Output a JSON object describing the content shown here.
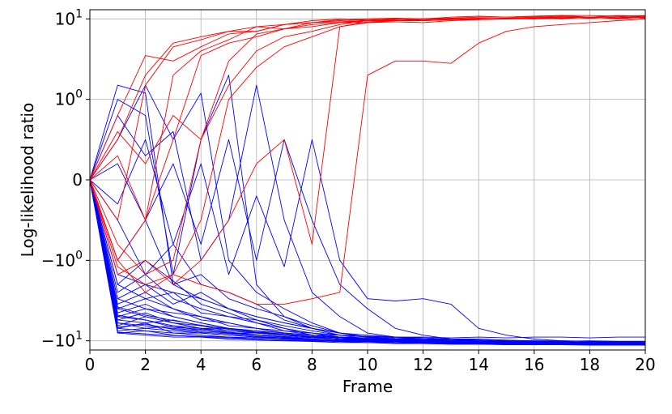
{
  "chart_data": {
    "type": "line",
    "title": "",
    "xlabel": "Frame",
    "ylabel": "Log-likelihood ratio",
    "xlim": [
      0,
      20
    ],
    "ylim": [
      -13,
      13
    ],
    "yscale": "symlog",
    "ylinthresh": 1,
    "grid": true,
    "legend": "none",
    "x": [
      0,
      1,
      2,
      3,
      4,
      5,
      6,
      7,
      8,
      9,
      10,
      11,
      12,
      13,
      14,
      15,
      16,
      17,
      18,
      19,
      20
    ],
    "x_ticks": [
      0,
      2,
      4,
      6,
      8,
      10,
      12,
      14,
      16,
      18,
      20
    ],
    "x_tick_labels": [
      "0",
      "2",
      "4",
      "6",
      "8",
      "10",
      "12",
      "14",
      "16",
      "18",
      "20"
    ],
    "y_ticks": [
      -10,
      -1,
      0,
      1,
      10
    ],
    "y_tick_labels": [
      {
        "base": "−10",
        "exp": "1"
      },
      {
        "base": "−10",
        "exp": "0"
      },
      {
        "base": "0",
        "exp": ""
      },
      {
        "base": "10",
        "exp": "0"
      },
      {
        "base": "10",
        "exp": "1"
      }
    ],
    "colors": {
      "class_a": "#ff0000",
      "class_b": "#0000ff"
    },
    "series_red": [
      [
        0,
        0.8,
        3.5,
        3.0,
        4.5,
        6.5,
        7.0,
        8.5,
        9.5,
        10.0,
        9.5,
        9.8,
        10.0,
        10.2,
        10.5,
        10.5,
        10.8,
        11.0,
        11.0,
        10.8,
        11.0
      ],
      [
        0,
        0.5,
        2.0,
        5.0,
        6.0,
        7.0,
        8.0,
        7.5,
        9.0,
        9.8,
        10.0,
        10.2,
        10.0,
        10.5,
        10.8,
        10.5,
        10.8,
        11.0,
        10.5,
        11.0,
        10.8
      ],
      [
        0,
        -0.5,
        1.5,
        4.5,
        5.5,
        7.0,
        7.0,
        8.5,
        9.0,
        9.5,
        9.8,
        10.0,
        9.5,
        9.8,
        10.0,
        10.2,
        10.5,
        10.2,
        10.5,
        10.0,
        10.5
      ],
      [
        0,
        0.3,
        -0.5,
        2.0,
        4.0,
        5.5,
        8.0,
        8.5,
        9.0,
        9.2,
        9.5,
        9.8,
        10.0,
        10.0,
        10.2,
        10.0,
        10.5,
        10.8,
        10.5,
        10.2,
        10.8
      ],
      [
        0,
        -1.0,
        -0.5,
        0.5,
        3.5,
        5.0,
        6.0,
        7.5,
        8.0,
        9.0,
        9.5,
        9.5,
        9.8,
        10.0,
        10.0,
        10.2,
        10.0,
        10.5,
        10.5,
        10.8,
        10.2
      ],
      [
        0,
        0.6,
        0.2,
        0.8,
        0.5,
        1.5,
        4.0,
        6.0,
        7.0,
        8.5,
        9.5,
        9.8,
        10.0,
        10.0,
        9.8,
        10.2,
        10.5,
        10.5,
        10.2,
        10.5,
        10.8
      ],
      [
        0,
        -0.8,
        -1.5,
        -1.0,
        0.5,
        3.0,
        6.5,
        7.5,
        8.5,
        9.0,
        9.0,
        9.5,
        9.5,
        9.8,
        10.0,
        10.0,
        10.2,
        10.0,
        10.5,
        10.2,
        10.5
      ],
      [
        0,
        -1.2,
        -2.0,
        -1.5,
        -0.5,
        1.0,
        2.5,
        4.5,
        6.0,
        8.0,
        9.2,
        9.5,
        9.5,
        9.8,
        9.8,
        10.0,
        10.0,
        10.2,
        10.5,
        10.2,
        10.5
      ],
      [
        0,
        -1.5,
        -1.0,
        -2.0,
        -1.0,
        -0.5,
        0.2,
        0.5,
        -0.8,
        8.0,
        9.0,
        9.2,
        9.0,
        9.5,
        9.8,
        10.0,
        10.2,
        10.5,
        10.2,
        10.5,
        10.5
      ],
      [
        0,
        -1.0,
        -2.5,
        -1.5,
        -2.0,
        -2.5,
        -3.5,
        -3.5,
        -3.0,
        -2.5,
        2.0,
        3.0,
        3.0,
        2.8,
        5.0,
        7.0,
        8.0,
        8.5,
        9.0,
        9.5,
        10.0
      ]
    ],
    "series_blue": [
      [
        0,
        1.5,
        1.2,
        -2.0,
        -3.0,
        -4.0,
        -5.0,
        -6.0,
        -7.0,
        -8.0,
        -9.0,
        -9.5,
        -10.0,
        -10.0,
        -10.2,
        -10.0,
        -10.5,
        -10.2,
        -10.5,
        -10.2,
        -10.5
      ],
      [
        0,
        0.5,
        1.5,
        0.5,
        1.2,
        -1.0,
        -2.5,
        -4.0,
        -6.0,
        -8.0,
        -9.0,
        -9.5,
        -10.0,
        -10.2,
        -10.5,
        -10.5,
        -10.8,
        -10.5,
        -10.8,
        -11.0,
        -10.8
      ],
      [
        0,
        1.0,
        0.8,
        -1.5,
        0.5,
        2.0,
        -2.0,
        -5.0,
        -7.0,
        -8.5,
        -9.5,
        -10.0,
        -10.2,
        -10.5,
        -10.5,
        -10.8,
        -10.8,
        -11.0,
        -10.8,
        -11.0,
        -11.0
      ],
      [
        0,
        0.8,
        0.3,
        0.6,
        -1.0,
        -0.5,
        1.5,
        -0.5,
        -2.5,
        -5.0,
        -8.0,
        -9.0,
        -9.5,
        -10.0,
        -10.2,
        -10.5,
        -10.5,
        -10.8,
        -10.5,
        -10.8,
        -10.8
      ],
      [
        0,
        0.2,
        -0.5,
        0.2,
        -0.8,
        0.5,
        -1.0,
        0.5,
        -0.5,
        -2.0,
        -4.0,
        -7.0,
        -8.5,
        -9.5,
        -10.0,
        -10.2,
        -10.5,
        -10.5,
        -10.8,
        -10.8,
        -11.0
      ],
      [
        0,
        -0.3,
        0.5,
        -0.8,
        0.2,
        -1.5,
        -0.2,
        -1.2,
        0.5,
        -1.0,
        -3.0,
        -3.2,
        -3.0,
        -3.5,
        -7.0,
        -8.5,
        -9.5,
        -10.0,
        -10.2,
        -10.5,
        -10.5
      ],
      [
        0,
        -1.5,
        -2.0,
        -2.5,
        -3.0,
        -4.0,
        -5.0,
        -6.0,
        -7.0,
        -8.0,
        -9.0,
        -9.5,
        -10.0,
        -10.2,
        -10.5,
        -10.5,
        -10.8,
        -11.0,
        -11.0,
        -11.0,
        -11.2
      ],
      [
        0,
        -2.0,
        -3.0,
        -4.0,
        -5.0,
        -6.0,
        -7.0,
        -8.0,
        -8.5,
        -9.0,
        -9.5,
        -10.0,
        -10.0,
        -10.2,
        -10.5,
        -10.8,
        -11.0,
        -11.0,
        -11.2,
        -11.0,
        -11.2
      ],
      [
        0,
        -3.0,
        -4.0,
        -5.0,
        -6.0,
        -7.0,
        -8.0,
        -8.5,
        -9.0,
        -9.5,
        -10.0,
        -10.2,
        -10.5,
        -10.5,
        -10.8,
        -11.0,
        -11.0,
        -11.2,
        -11.2,
        -11.3,
        -11.3
      ],
      [
        0,
        -4.0,
        -5.0,
        -6.0,
        -7.0,
        -7.5,
        -8.0,
        -8.5,
        -9.0,
        -9.5,
        -9.8,
        -10.0,
        -10.2,
        -10.5,
        -10.5,
        -10.8,
        -10.8,
        -11.0,
        -11.0,
        -11.2,
        -11.0
      ],
      [
        0,
        -5.0,
        -5.5,
        -6.5,
        -7.0,
        -8.0,
        -8.5,
        -9.0,
        -9.5,
        -10.0,
        -10.0,
        -10.2,
        -10.5,
        -10.8,
        -10.8,
        -11.0,
        -11.0,
        -11.2,
        -11.0,
        -11.3,
        -11.2
      ],
      [
        0,
        -6.0,
        -6.5,
        -7.0,
        -7.5,
        -8.0,
        -8.5,
        -9.0,
        -9.5,
        -9.8,
        -10.0,
        -10.0,
        -10.2,
        -10.5,
        -10.5,
        -10.8,
        -10.8,
        -10.8,
        -11.0,
        -11.0,
        -11.2
      ],
      [
        0,
        -7.0,
        -7.5,
        -8.0,
        -8.5,
        -9.0,
        -9.5,
        -9.8,
        -10.0,
        -10.2,
        -10.5,
        -10.5,
        -10.8,
        -11.0,
        -11.0,
        -11.0,
        -11.2,
        -11.2,
        -11.3,
        -11.3,
        -11.3
      ],
      [
        0,
        -8.0,
        -8.5,
        -9.0,
        -9.0,
        -9.5,
        -9.8,
        -10.0,
        -10.2,
        -10.5,
        -10.5,
        -10.8,
        -10.8,
        -11.0,
        -11.0,
        -11.2,
        -11.2,
        -11.0,
        -11.2,
        -11.3,
        -11.3
      ],
      [
        0,
        -1.0,
        -0.5,
        -2.0,
        -1.5,
        -3.0,
        -4.0,
        -5.0,
        -6.5,
        -8.0,
        -9.0,
        -9.5,
        -9.8,
        -10.0,
        -10.0,
        -10.2,
        -10.5,
        -10.5,
        -10.8,
        -10.8,
        -11.0
      ],
      [
        0,
        -0.5,
        -1.5,
        -0.8,
        -2.0,
        -2.5,
        -3.5,
        -5.5,
        -7.0,
        -8.0,
        -8.5,
        -9.0,
        -9.5,
        -9.5,
        -9.8,
        -10.0,
        -10.2,
        -10.0,
        -10.2,
        -10.5,
        -10.5
      ],
      [
        0,
        -2.5,
        -1.5,
        -3.0,
        -4.0,
        -5.0,
        -5.5,
        -6.5,
        -7.5,
        -8.5,
        -9.0,
        -9.2,
        -9.5,
        -9.8,
        -10.0,
        -10.0,
        -10.2,
        -10.5,
        -10.5,
        -10.5,
        -10.8
      ],
      [
        0,
        -3.5,
        -2.5,
        -4.0,
        -5.5,
        -6.0,
        -7.0,
        -7.5,
        -8.0,
        -8.5,
        -8.8,
        -9.0,
        -9.2,
        -9.5,
        -9.5,
        -9.8,
        -10.0,
        -10.0,
        -10.2,
        -10.2,
        -10.5
      ],
      [
        0,
        -4.5,
        -3.5,
        -5.0,
        -6.0,
        -7.0,
        -7.5,
        -8.0,
        -8.5,
        -8.5,
        -8.8,
        -9.0,
        -9.0,
        -9.2,
        -9.0,
        -9.2,
        -9.0,
        -9.0,
        -9.2,
        -9.0,
        -9.0
      ],
      [
        0,
        -5.5,
        -6.0,
        -5.5,
        -6.5,
        -7.5,
        -8.0,
        -8.5,
        -9.0,
        -9.0,
        -9.2,
        -9.5,
        -9.5,
        -9.8,
        -9.8,
        -10.0,
        -10.0,
        -10.2,
        -10.0,
        -10.2,
        -10.2
      ],
      [
        0,
        -6.5,
        -5.0,
        -6.0,
        -7.0,
        -7.0,
        -7.5,
        -8.5,
        -9.0,
        -9.5,
        -9.8,
        -9.8,
        -10.0,
        -10.2,
        -10.2,
        -10.5,
        -10.5,
        -10.5,
        -10.8,
        -10.8,
        -11.0
      ],
      [
        0,
        -7.5,
        -7.0,
        -7.5,
        -8.0,
        -8.5,
        -9.0,
        -9.2,
        -9.5,
        -9.8,
        -10.0,
        -10.2,
        -10.2,
        -10.5,
        -10.5,
        -10.8,
        -10.8,
        -11.0,
        -11.0,
        -11.0,
        -11.0
      ],
      [
        0,
        -2.0,
        -1.0,
        -1.8,
        -3.5,
        -4.5,
        -6.0,
        -7.5,
        -8.5,
        -9.0,
        -9.5,
        -9.8,
        -10.0,
        -10.2,
        -10.2,
        -10.5,
        -10.5,
        -10.8,
        -10.5,
        -10.8,
        -10.8
      ],
      [
        0,
        -3.0,
        -2.0,
        -3.5,
        -2.5,
        -4.0,
        -5.5,
        -7.0,
        -8.0,
        -9.0,
        -9.5,
        -10.0,
        -10.0,
        -10.2,
        -10.5,
        -10.5,
        -10.5,
        -10.8,
        -10.8,
        -11.0,
        -11.0
      ],
      [
        0,
        -4.0,
        -3.0,
        -2.5,
        -4.5,
        -5.0,
        -6.0,
        -7.0,
        -8.5,
        -9.0,
        -9.8,
        -10.0,
        -10.2,
        -10.2,
        -10.5,
        -10.5,
        -10.8,
        -10.8,
        -11.0,
        -11.0,
        -11.2
      ],
      [
        0,
        -5.0,
        -4.0,
        -4.5,
        -5.0,
        -6.5,
        -7.0,
        -8.0,
        -8.5,
        -9.2,
        -9.5,
        -9.8,
        -10.0,
        -10.0,
        -10.2,
        -10.2,
        -10.5,
        -10.5,
        -10.5,
        -10.8,
        -10.8
      ],
      [
        0,
        -6.0,
        -7.0,
        -6.5,
        -7.5,
        -8.0,
        -8.0,
        -8.5,
        -9.0,
        -9.5,
        -9.5,
        -9.8,
        -9.8,
        -10.0,
        -10.0,
        -10.2,
        -10.2,
        -10.5,
        -10.5,
        -10.5,
        -10.8
      ],
      [
        0,
        -7.0,
        -6.0,
        -8.0,
        -8.0,
        -8.5,
        -9.0,
        -9.5,
        -9.8,
        -10.0,
        -10.2,
        -10.5,
        -10.5,
        -10.8,
        -10.8,
        -11.0,
        -11.0,
        -11.0,
        -11.2,
        -11.2,
        -11.2
      ],
      [
        0,
        -8.0,
        -7.5,
        -8.5,
        -9.0,
        -9.2,
        -9.5,
        -9.8,
        -10.0,
        -10.2,
        -10.2,
        -10.5,
        -10.5,
        -10.5,
        -10.8,
        -10.8,
        -10.8,
        -11.0,
        -11.0,
        -11.0,
        -11.0
      ],
      [
        0,
        -5.5,
        -4.5,
        -6.0,
        -6.5,
        -7.0,
        -7.8,
        -8.2,
        -8.8,
        -9.2,
        -9.6,
        -9.8,
        -10.0,
        -10.2,
        -10.4,
        -10.6,
        -10.6,
        -10.8,
        -10.8,
        -11.0,
        -11.0
      ],
      [
        0,
        -6.8,
        -6.2,
        -7.2,
        -7.8,
        -8.2,
        -8.8,
        -9.2,
        -9.6,
        -9.8,
        -10.0,
        -10.2,
        -10.4,
        -10.4,
        -10.6,
        -10.6,
        -10.8,
        -10.8,
        -11.0,
        -11.0,
        -11.1
      ],
      [
        0,
        -4.8,
        -5.5,
        -6.8,
        -7.2,
        -7.8,
        -8.4,
        -8.8,
        -9.2,
        -9.5,
        -9.8,
        -10.0,
        -10.0,
        -10.2,
        -10.2,
        -10.4,
        -10.4,
        -10.6,
        -10.6,
        -10.8,
        -10.8
      ],
      [
        0,
        -7.8,
        -8.2,
        -8.6,
        -8.8,
        -9.0,
        -9.2,
        -9.4,
        -9.6,
        -9.8,
        -10.0,
        -10.0,
        -10.2,
        -10.2,
        -10.4,
        -10.4,
        -10.6,
        -10.6,
        -10.8,
        -10.8,
        -10.8
      ],
      [
        0,
        -3.8,
        -4.8,
        -5.6,
        -6.4,
        -7.2,
        -7.8,
        -8.4,
        -8.8,
        -9.2,
        -9.4,
        -9.6,
        -9.8,
        -10.0,
        -10.0,
        -10.2,
        -10.2,
        -10.4,
        -10.4,
        -10.4,
        -10.6
      ]
    ]
  }
}
